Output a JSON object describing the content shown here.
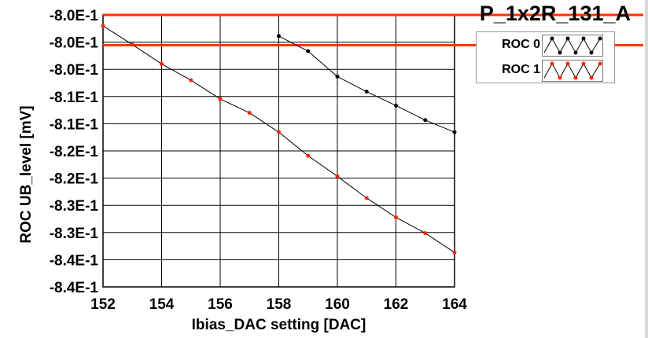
{
  "chart_data": {
    "type": "line",
    "title": "P_1x2R_131_A",
    "xlabel": "Ibias_DAC setting [DAC]",
    "ylabel": "ROC UB_level [mV]",
    "xlim": [
      152,
      164
    ],
    "ylim": [
      -0.84,
      -0.795
    ],
    "x_ticks": [
      "152",
      "154",
      "156",
      "158",
      "160",
      "162",
      "164"
    ],
    "y_ticks": [
      "-8.0E-1",
      "-8.0E-1",
      "-8.0E-1",
      "-8.1E-1",
      "-8.1E-1",
      "-8.2E-1",
      "-8.2E-1",
      "-8.3E-1",
      "-8.3E-1",
      "-8.4E-1",
      "-8.4E-1"
    ],
    "grid": true,
    "legend_position": "top-right",
    "reference_lines": [
      -0.795,
      -0.8
    ],
    "series": [
      {
        "name": "ROC 0",
        "color": "#000000",
        "x": [
          158,
          159,
          160,
          161,
          162,
          163,
          164
        ],
        "y": [
          -0.7985,
          -0.801,
          -0.8052,
          -0.8077,
          -0.81,
          -0.8124,
          -0.8144
        ]
      },
      {
        "name": "ROC 1",
        "color": "#ff2200",
        "x": [
          152,
          153,
          154,
          155,
          156,
          157,
          158,
          159,
          160,
          161,
          162,
          163,
          164
        ],
        "y": [
          -0.7968,
          -0.7999,
          -0.8031,
          -0.8058,
          -0.8089,
          -0.8112,
          -0.8144,
          -0.8183,
          -0.8217,
          -0.8253,
          -0.8285,
          -0.8311,
          -0.8343
        ]
      }
    ]
  },
  "colors": {
    "reference_line": "#ff3300",
    "grid": "#000000",
    "legend_border": "#9a9a9a"
  }
}
